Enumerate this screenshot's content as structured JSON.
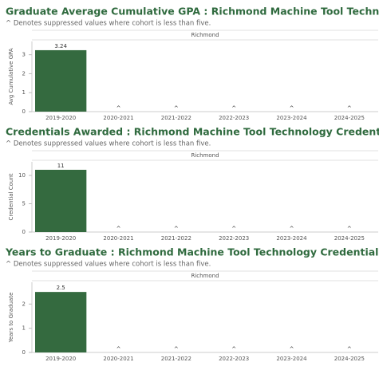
{
  "chart_data": [
    {
      "type": "bar",
      "title": "Graduate Average Cumulative GPA : Richmond Machine Tool Technology Credentials",
      "subtitle": "^ Denotes suppressed values where cohort is less than five.",
      "panel": "Richmond",
      "y_label": "Avg Cumulative GPA",
      "categories": [
        "2019-2020",
        "2020-2021",
        "2021-2022",
        "2022-2023",
        "2023-2024",
        "2024-2025"
      ],
      "values": [
        3.24,
        null,
        null,
        null,
        null,
        null
      ],
      "value_labels": [
        "3.24",
        "^",
        "^",
        "^",
        "^",
        "^"
      ],
      "color": "#346a3f",
      "ylim": [
        0,
        3.7
      ],
      "yticks": [
        0,
        1,
        2,
        3
      ]
    },
    {
      "type": "bar",
      "title": "Credentials Awarded : Richmond Machine Tool Technology Credentials",
      "subtitle": "^ Denotes suppressed values where cohort is less than five.",
      "panel": "Richmond",
      "y_label": "Credential Count",
      "categories": [
        "2019-2020",
        "2020-2021",
        "2021-2022",
        "2022-2023",
        "2023-2024",
        "2024-2025"
      ],
      "values": [
        11,
        null,
        null,
        null,
        null,
        null
      ],
      "value_labels": [
        "11",
        "^",
        "^",
        "^",
        "^",
        "^"
      ],
      "color": "#346a3f",
      "ylim": [
        0,
        12.4
      ],
      "yticks": [
        0,
        5,
        10
      ]
    },
    {
      "type": "bar",
      "title": "Years to Graduate : Richmond Machine Tool Technology Credentials",
      "subtitle": "^ Denotes suppressed values where cohort is less than five.",
      "panel": "Richmond",
      "y_label": "Years to Graduate",
      "categories": [
        "2019-2020",
        "2020-2021",
        "2021-2022",
        "2022-2023",
        "2023-2024",
        "2024-2025"
      ],
      "values": [
        2.5,
        null,
        null,
        null,
        null,
        null
      ],
      "value_labels": [
        "2.5",
        "^",
        "^",
        "^",
        "^",
        "^"
      ],
      "color": "#346a3f",
      "ylim": [
        0,
        2.9
      ],
      "yticks": [
        0,
        1,
        2
      ]
    }
  ]
}
